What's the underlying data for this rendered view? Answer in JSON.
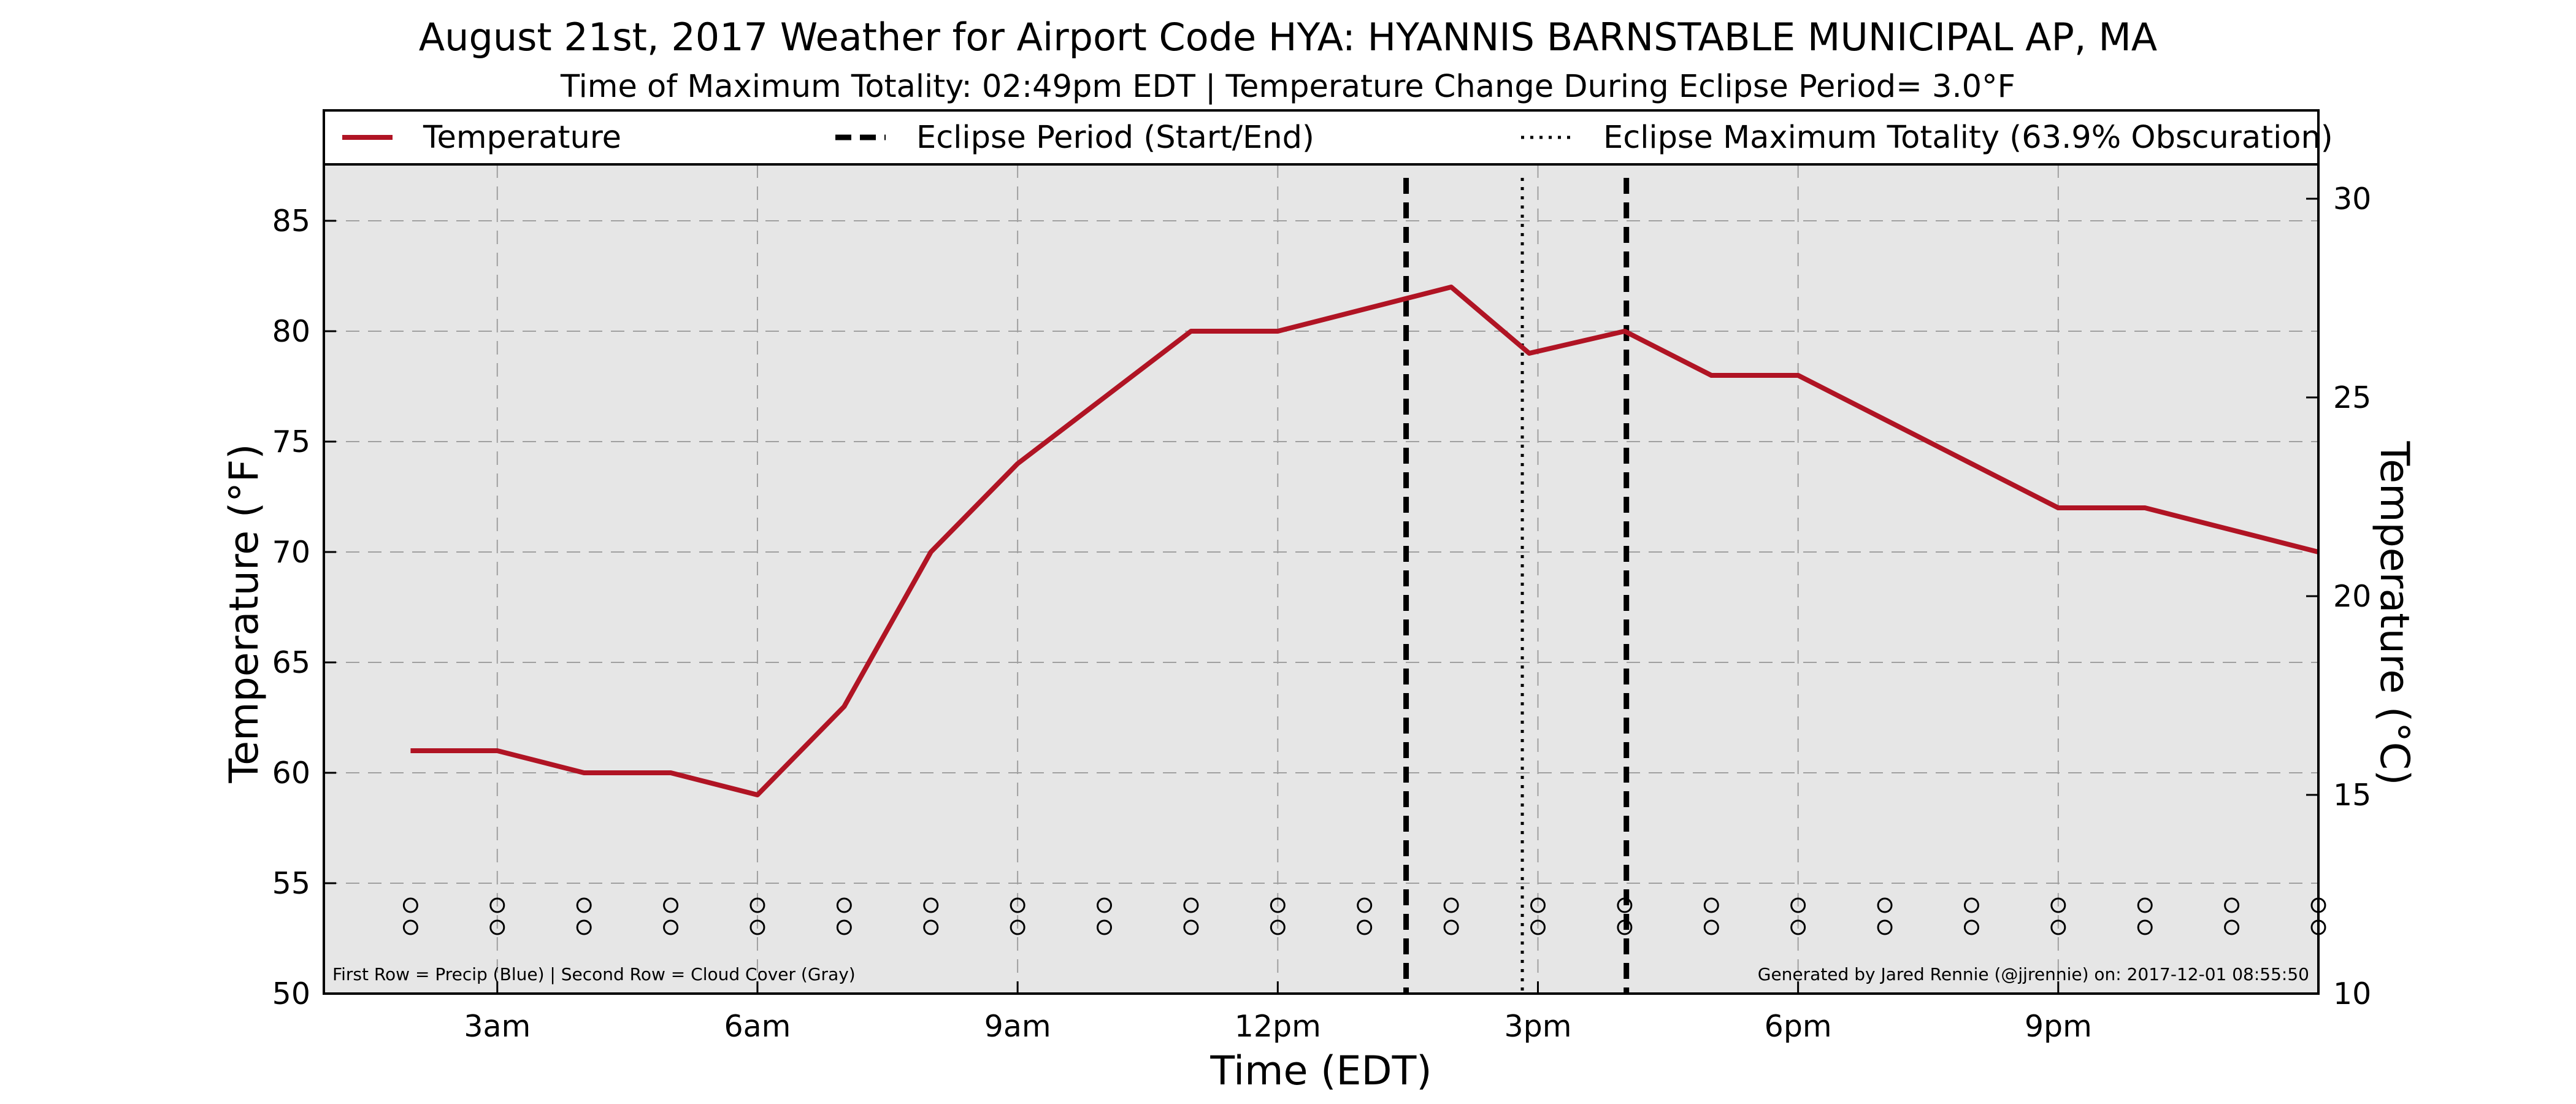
{
  "chart_data": {
    "type": "line",
    "title": "August 21st, 2017 Weather for Airport Code HYA: HYANNIS BARNSTABLE MUNICIPAL AP, MA",
    "subtitle": "Time of Maximum Totality: 02:49pm EDT | Temperature Change During Eclipse Period= 3.0$^\\circ$F",
    "subtitle_display": "Time of Maximum Totality: 02:49pm EDT | Temperature Change During Eclipse Period= 3.0°F",
    "xlabel": "Time (EDT)",
    "ylabel": "Temperature ($^\\circ$F)",
    "ylabel_display": "Temperature (°F)",
    "ylabel_right": "Temperature ($^\\circ$C)",
    "ylabel_right_display": "Temperature (°C)",
    "xlim": [
      1,
      24
    ],
    "ylim": [
      50,
      88
    ],
    "ylim_right_c": [
      10,
      31.1
    ],
    "x_ticks": [
      {
        "x": 3,
        "label": "3am"
      },
      {
        "x": 6,
        "label": "6am"
      },
      {
        "x": 9,
        "label": "9am"
      },
      {
        "x": 12,
        "label": "12pm"
      },
      {
        "x": 15,
        "label": "3pm"
      },
      {
        "x": 18,
        "label": "6pm"
      },
      {
        "x": 21,
        "label": "9pm"
      }
    ],
    "y_ticks": [
      {
        "y": 50,
        "label": "50"
      },
      {
        "y": 55,
        "label": "55"
      },
      {
        "y": 60,
        "label": "60"
      },
      {
        "y": 65,
        "label": "65"
      },
      {
        "y": 70,
        "label": "70"
      },
      {
        "y": 75,
        "label": "75"
      },
      {
        "y": 80,
        "label": "80"
      },
      {
        "y": 85,
        "label": "85"
      }
    ],
    "y_right_ticks": [
      {
        "c": 10,
        "label": "10"
      },
      {
        "c": 15,
        "label": "15"
      },
      {
        "c": 20,
        "label": "20"
      },
      {
        "c": 25,
        "label": "25"
      },
      {
        "c": 30,
        "label": "30"
      }
    ],
    "grid": true,
    "legend_placement": "top",
    "series": [
      {
        "name": "Temperature",
        "color": "#b01424",
        "x": [
          2,
          3,
          4,
          5,
          6,
          7,
          8,
          9,
          10,
          11,
          12,
          13,
          14,
          14.9,
          16,
          17,
          18,
          19,
          20,
          21,
          22,
          23,
          24
        ],
        "y": [
          61,
          61,
          60,
          60,
          59,
          63,
          70,
          74,
          77,
          80,
          80,
          81,
          82,
          79,
          80,
          78,
          78,
          76,
          74,
          72,
          72,
          71,
          70
        ]
      }
    ],
    "eclipse_lines": [
      {
        "name": "Eclipse Period (Start/End)",
        "x": 13.48,
        "style": "dashed"
      },
      {
        "name": "Eclipse Maximum Totality (63.9% Obscuration)",
        "x": 14.82,
        "style": "dotted"
      },
      {
        "name": "Eclipse Period (Start/End)",
        "x": 16.02,
        "style": "dashed"
      }
    ],
    "legend": [
      {
        "label": "Temperature",
        "style": "solid",
        "color": "#b01424"
      },
      {
        "label": "Eclipse Period (Start/End)",
        "style": "dashed",
        "color": "#000000"
      },
      {
        "label": "Eclipse Maximum Totality (63.9% Obscuration)",
        "style": "dotted",
        "color": "#000000"
      }
    ],
    "precip_row": {
      "y": 54,
      "x": [
        2,
        3,
        4,
        5,
        6,
        7,
        8,
        9,
        10,
        11,
        12,
        13,
        14,
        15,
        16,
        17,
        18,
        19,
        20,
        21,
        22,
        23,
        24
      ]
    },
    "cloud_row": {
      "y": 53,
      "x": [
        2,
        3,
        4,
        5,
        6,
        7,
        8,
        9,
        10,
        11,
        12,
        13,
        14,
        15,
        16,
        17,
        18,
        19,
        20,
        21,
        22,
        23,
        24
      ]
    },
    "footnote_left": "First Row = Precip (Blue) | Second Row = Cloud Cover (Gray)",
    "footnote_right": "Generated by Jared Rennie (@jjrennie) on: 2017-12-01 08:55:50",
    "colors": {
      "plot_background": "#e6e6e6",
      "grid": "#a0a0a0",
      "temperature": "#b01424",
      "eclipse": "#000000"
    }
  }
}
